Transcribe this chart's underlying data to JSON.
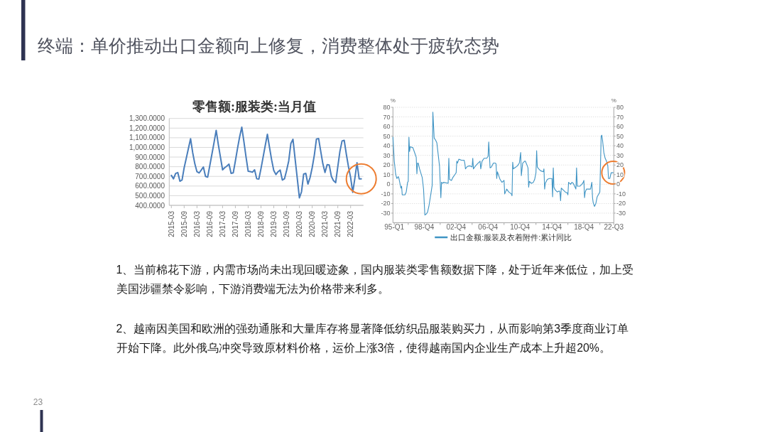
{
  "chart_data": [
    {
      "type": "other",
      "title": "终端：单价推动出口金额向上修复，消费整体处于疲软态势",
      "annotations": [
        "1、当前棉花下游，内需市场尚未出现回暖迹象，国内服装类零售额数据下降，处于近年来低位，加上受美国涉疆禁令影响，下游消费端无法为价格带来利多。",
        "2、越南因美国和欧洲的强劲通胀和大量库存将显著降低纺织品服装购买力，从而影响第3季度商业订单开始下降。此外俄乌冲突导致原材料价格，运价上涨3倍，使得越南国内企业生产成本上升超20%。",
        "23"
      ]
    },
    {
      "type": "line",
      "title": "零售额:服装类:当月值",
      "x": [
        "2015-03",
        "2015-04",
        "2015-05",
        "2015-06",
        "2015-07",
        "2015-08",
        "2015-09",
        "2015-10",
        "2015-11",
        "2015-12",
        "2016-01",
        "2016-02",
        "2016-03",
        "2016-04",
        "2016-05",
        "2016-06",
        "2016-07",
        "2016-08",
        "2016-09",
        "2016-10",
        "2016-11",
        "2016-12",
        "2017-01",
        "2017-02",
        "2017-03",
        "2017-04",
        "2017-05",
        "2017-06",
        "2017-07",
        "2017-08",
        "2017-09",
        "2017-10",
        "2017-11",
        "2017-12",
        "2018-01",
        "2018-02",
        "2018-03",
        "2018-04",
        "2018-05",
        "2018-06",
        "2018-07",
        "2018-08",
        "2018-09",
        "2018-10",
        "2018-11",
        "2018-12",
        "2019-01",
        "2019-02",
        "2019-03",
        "2019-04",
        "2019-05",
        "2019-06",
        "2019-07",
        "2019-08",
        "2019-09",
        "2019-10",
        "2019-11",
        "2019-12",
        "2020-01",
        "2020-02",
        "2020-03",
        "2020-04",
        "2020-05",
        "2020-06",
        "2020-07",
        "2020-08",
        "2020-09",
        "2020-10",
        "2020-11",
        "2020-12",
        "2021-01",
        "2021-02",
        "2021-03",
        "2021-04",
        "2021-05",
        "2021-06",
        "2021-07",
        "2021-08",
        "2021-09",
        "2021-10",
        "2021-11",
        "2021-12",
        "2022-01",
        "2022-02",
        "2022-03",
        "2022-04",
        "2022-05",
        "2022-06",
        "2022-07",
        "2022-08"
      ],
      "series": [
        {
          "color": "#4a7ebb",
          "values": [
            710,
            675,
            730,
            740,
            650,
            662,
            790,
            890,
            990,
            1090,
            945,
            830,
            748,
            735,
            765,
            797,
            700,
            692,
            810,
            930,
            1050,
            1177,
            1030,
            900,
            768,
            790,
            807,
            827,
            731,
            736,
            860,
            990,
            1110,
            1210,
            1060,
            900,
            753,
            750,
            743,
            768,
            675,
            672,
            780,
            900,
            1020,
            1136,
            1000,
            870,
            760,
            719,
            748,
            765,
            662,
            675,
            760,
            860,
            1040,
            1084,
            880,
            680,
            478,
            540,
            724,
            731,
            620,
            687,
            790,
            920,
            1087,
            1092,
            960,
            830,
            740,
            822,
            817,
            700,
            655,
            635,
            800,
            960,
            1067,
            1074,
            930,
            800,
            690,
            535,
            680,
            841,
            675,
            675
          ]
        }
      ],
      "xlim": [
        "2015-02",
        "2022-09"
      ],
      "xticks": [
        "2015-03",
        "2015-09",
        "2016-03",
        "2016-09",
        "2017-03",
        "2017-09",
        "2018-03",
        "2018-09",
        "2019-03",
        "2019-09",
        "2020-03",
        "2020-09",
        "2021-03",
        "2021-09",
        "2022-03"
      ],
      "ylim": [
        400,
        1300
      ],
      "yticks": [
        {
          "value": 400,
          "label": "400.0000"
        },
        {
          "value": 500,
          "label": "500.0000"
        },
        {
          "value": 600,
          "label": "600.0000"
        },
        {
          "value": 700,
          "label": "700.0000"
        },
        {
          "value": 800,
          "label": "800.0000"
        },
        {
          "value": 900,
          "label": "900.0000"
        },
        {
          "value": 1000,
          "label": "1,000.0000"
        },
        {
          "value": 1100,
          "label": "1,100.0000"
        },
        {
          "value": 1200,
          "label": "1,200.0000"
        },
        {
          "value": 1300,
          "label": "1,300.0000"
        }
      ],
      "grid": "y"
    },
    {
      "type": "line",
      "series": [
        {
          "name": "出口金额:服装及衣着附件:累计同比",
          "color": "#3f94c4",
          "x": [
            "1995-01",
            "1995-03",
            "1995-05",
            "1995-06",
            "1995-07",
            "1995-09",
            "1995-10",
            "1996-01",
            "1996-02",
            "1996-03",
            "1996-07",
            "1996-09",
            "1996-11",
            "1996-12",
            "1997-01",
            "1997-02",
            "1997-03",
            "1997-07",
            "1997-09",
            "1997-12",
            "1998-01",
            "1998-02",
            "1998-03",
            "1998-05",
            "1998-09",
            "1998-11",
            "1999-01",
            "1999-03",
            "1999-05",
            "1999-07",
            "1999-10",
            "1999-12",
            "2000-01",
            "2000-03",
            "2000-05",
            "2000-07",
            "2000-11",
            "2001-01",
            "2001-02",
            "2001-04",
            "2001-05",
            "2001-12",
            "2002-01",
            "2002-02",
            "2002-05",
            "2002-07",
            "2002-11",
            "2002-12",
            "2003-01",
            "2003-02",
            "2003-04",
            "2003-08",
            "2003-12",
            "2004-01",
            "2004-02",
            "2004-04",
            "2004-07",
            "2004-09",
            "2004-12",
            "2005-01",
            "2005-02",
            "2005-05",
            "2005-09",
            "2005-12",
            "2006-01",
            "2006-03",
            "2006-06",
            "2006-10",
            "2006-12",
            "2007-01",
            "2007-03",
            "2007-05",
            "2007-08",
            "2007-11",
            "2007-12",
            "2008-01",
            "2008-02",
            "2008-06",
            "2008-09",
            "2008-12",
            "2009-01",
            "2009-04",
            "2009-07",
            "2009-11",
            "2009-12",
            "2010-01",
            "2010-02",
            "2010-04",
            "2010-08",
            "2010-11",
            "2011-01",
            "2011-02",
            "2011-04",
            "2011-07",
            "2011-08",
            "2011-11",
            "2011-12",
            "2012-01",
            "2012-02",
            "2012-05",
            "2012-08",
            "2012-10",
            "2012-12",
            "2013-01",
            "2013-02",
            "2013-04",
            "2013-07",
            "2013-11",
            "2013-12",
            "2014-01",
            "2014-02",
            "2014-05",
            "2014-08",
            "2014-12",
            "2015-01",
            "2015-02",
            "2015-03",
            "2015-05",
            "2015-08",
            "2015-11",
            "2015-12",
            "2016-01",
            "2016-02",
            "2016-05",
            "2016-08",
            "2016-11",
            "2016-12",
            "2017-01",
            "2017-04",
            "2017-06",
            "2017-08",
            "2017-10",
            "2017-12",
            "2018-01",
            "2018-02",
            "2018-06",
            "2018-09",
            "2018-11",
            "2018-12",
            "2019-01",
            "2019-02",
            "2019-04",
            "2019-07",
            "2019-10",
            "2019-12",
            "2020-01",
            "2020-02",
            "2020-04",
            "2020-06",
            "2020-08",
            "2020-12",
            "2021-02",
            "2021-03",
            "2021-04",
            "2021-06",
            "2021-08",
            "2021-10",
            "2021-12",
            "2022-01",
            "2022-03",
            "2022-05",
            "2022-08"
          ],
          "values": [
            49,
            24,
            11,
            8,
            6,
            8,
            6,
            -4,
            -2,
            -11,
            -11,
            -8,
            2,
            3,
            49,
            34,
            39,
            38,
            34,
            28,
            11,
            22,
            22,
            16,
            7,
            -5,
            -32,
            -31,
            -29,
            -23,
            -10,
            -1,
            75,
            48,
            46,
            43,
            19,
            -14,
            2,
            1,
            2,
            1,
            27,
            5,
            4,
            7,
            11,
            12,
            24,
            22,
            26,
            25,
            25,
            22,
            16,
            18,
            19,
            19,
            18,
            27,
            16,
            19,
            22,
            24,
            16,
            24,
            27,
            27,
            29,
            44,
            17,
            18,
            22,
            22,
            21,
            6,
            13,
            5,
            2,
            4,
            -10,
            -5,
            -8,
            -10,
            -12,
            23,
            16,
            17,
            19,
            22,
            33,
            9,
            22,
            24,
            24,
            19,
            17,
            -3,
            3,
            1,
            2,
            5,
            12,
            35,
            18,
            16,
            14,
            13,
            16,
            -5,
            1,
            5,
            6,
            6,
            -13,
            17,
            -3,
            -6,
            -8,
            -7,
            -8,
            -17,
            -4,
            -6,
            -8,
            -9,
            -11,
            2,
            0,
            2,
            1,
            -2,
            -5,
            17,
            -2,
            -2,
            0,
            2,
            4,
            -14,
            -8,
            -5,
            -5,
            -5,
            2,
            -14,
            -19,
            -23,
            -20,
            -13,
            -8,
            50,
            51,
            46,
            33,
            27,
            24,
            19,
            6,
            6,
            12,
            12
          ]
        }
      ],
      "xlim": [
        "1995-01",
        "2022-09"
      ],
      "xticks": [
        {
          "value": "1995-03",
          "label": "95-Q1"
        },
        {
          "value": "1996-12",
          "label": null
        },
        {
          "value": "1998-12",
          "label": "98-Q4"
        },
        {
          "value": "2000-12",
          "label": null
        },
        {
          "value": "2002-12",
          "label": "02-Q4"
        },
        {
          "value": "2004-12",
          "label": null
        },
        {
          "value": "2006-12",
          "label": "06-Q4"
        },
        {
          "value": "2008-12",
          "label": null
        },
        {
          "value": "2010-12",
          "label": "10-Q4"
        },
        {
          "value": "2012-12",
          "label": null
        },
        {
          "value": "2014-12",
          "label": "14-Q4"
        },
        {
          "value": "2016-12",
          "label": null
        },
        {
          "value": "2018-12",
          "label": "18-Q4"
        },
        {
          "value": "2020-12",
          "label": null
        },
        {
          "value": "2022-09",
          "label": "22-Q3"
        }
      ],
      "ylim": [
        -40,
        80
      ],
      "yticks": [
        -30,
        -20,
        -10,
        0,
        10,
        20,
        30,
        40,
        50,
        60,
        70,
        80
      ],
      "y2lim": [
        -40,
        80
      ],
      "y2ticks": [
        -30,
        -20,
        -10,
        0,
        10,
        20,
        30,
        40,
        50,
        60,
        70,
        80
      ],
      "ylabel": "%",
      "y2label": "%",
      "grid": "y",
      "legend": "bottom"
    }
  ]
}
